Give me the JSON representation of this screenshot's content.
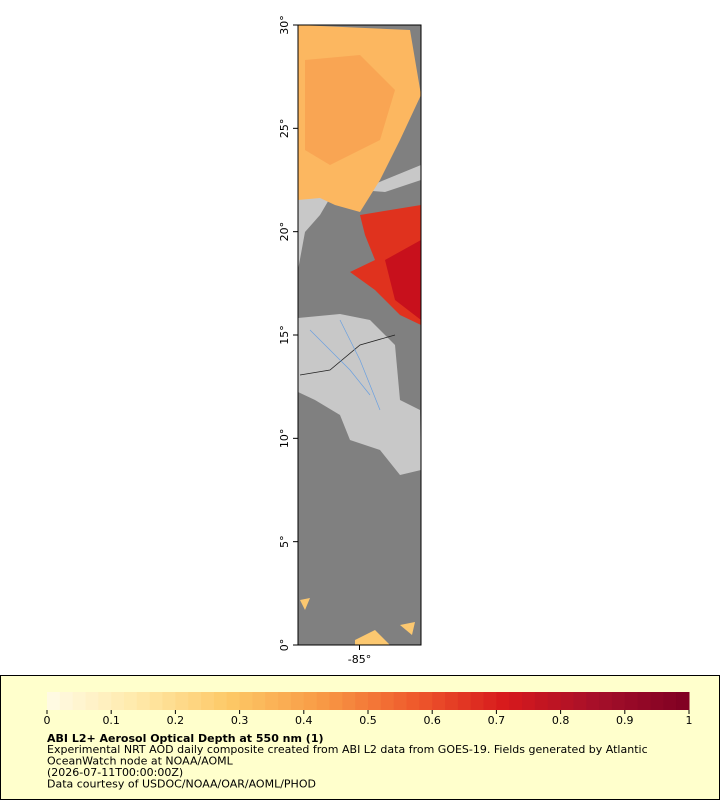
{
  "map": {
    "ylim": [
      0,
      30
    ],
    "yticks": [
      {
        "value": 0,
        "label": "0°"
      },
      {
        "value": 5,
        "label": "5°"
      },
      {
        "value": 10,
        "label": "10°"
      },
      {
        "value": 15,
        "label": "15°"
      },
      {
        "value": 20,
        "label": "20°"
      },
      {
        "value": 25,
        "label": "25°"
      },
      {
        "value": 30,
        "label": "30°"
      }
    ],
    "xlim": [
      -88,
      -82
    ],
    "xticks": [
      {
        "value": -85,
        "label": "-85°"
      }
    ]
  },
  "colorbar": {
    "range": [
      0,
      1
    ],
    "ticks": [
      0,
      0.1,
      0.2,
      0.3,
      0.4,
      0.5,
      0.6,
      0.7,
      0.8,
      0.9,
      1
    ],
    "colors": [
      "#fffbe6",
      "#ffe9a8",
      "#fdc866",
      "#f89a45",
      "#ef5a2c",
      "#d7191c",
      "#a50f2a",
      "#7f0022"
    ]
  },
  "caption": {
    "title": "ABI L2+ Aerosol Optical Depth at 550 nm (1)",
    "lines": [
      "Experimental NRT AOD daily composite created from ABI L2 data from GOES-19. Fields generated by Atlantic",
      "OceanWatch node at NOAA/AOML",
      "(2026-07-11T00:00:00Z)",
      "Data courtesy of USDOC/NOAA/OAR/AOML/PHOD"
    ]
  }
}
